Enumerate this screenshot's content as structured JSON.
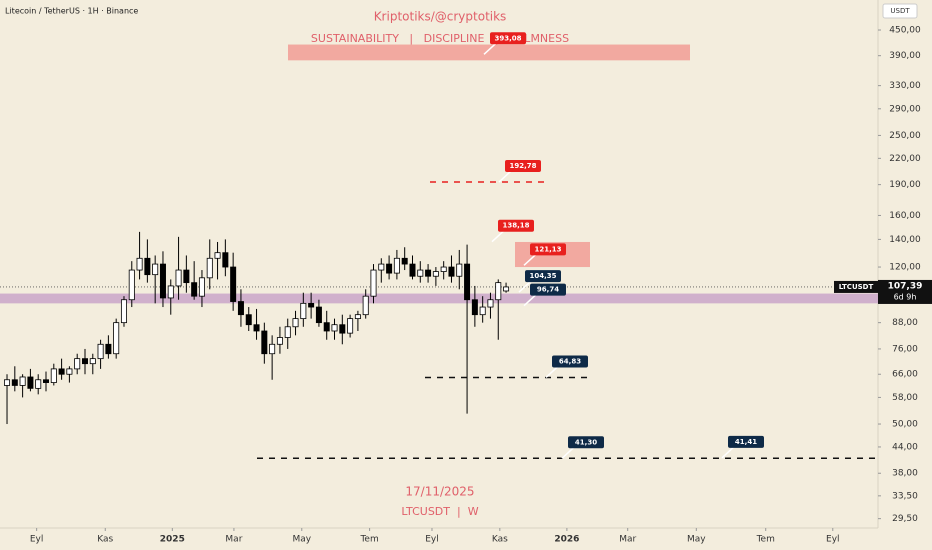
{
  "chart_data": {
    "type": "candlestick",
    "title": "Kriptotiks/@cryptotiks",
    "subtitle": "SUSTAINABILITY   |   DISCIPLINE   |   CALMNESS",
    "symbol_info": "Litecoin / TetherUS · 1H · Binance",
    "date_text": "17/11/2025",
    "footer": "LTCUSDT  |  W",
    "currency": "USDT",
    "log_scale": true,
    "x": [
      0,
      1,
      2,
      3,
      4,
      5,
      6,
      7,
      8,
      9,
      10,
      11,
      12,
      13,
      14,
      15,
      16,
      17,
      18,
      19,
      20,
      21,
      22,
      23,
      24,
      25,
      26,
      27,
      28,
      29,
      30,
      31,
      32,
      33,
      34,
      35,
      36,
      37,
      38,
      39,
      40,
      41,
      42,
      43,
      44,
      45,
      46,
      47,
      48,
      49,
      50,
      51,
      52,
      53,
      54,
      55,
      56,
      57,
      58,
      59,
      60,
      61,
      62,
      63,
      64
    ],
    "open": [
      62,
      64,
      62,
      65,
      61,
      64,
      63,
      68,
      66,
      68,
      72,
      70,
      72,
      78,
      74,
      88,
      100,
      118,
      126,
      115,
      122,
      101,
      108,
      118,
      110,
      102,
      113,
      126,
      130,
      120,
      99,
      92,
      87,
      84,
      74,
      78,
      81,
      86,
      90,
      98,
      96,
      88,
      84,
      87,
      83,
      90,
      92,
      102,
      118,
      122,
      116,
      126,
      122,
      114,
      118,
      114,
      117,
      120,
      114,
      122,
      100,
      92,
      96,
      100,
      105
    ],
    "high": [
      66,
      69,
      66,
      68,
      66,
      67,
      70,
      72,
      69,
      74,
      76,
      74,
      80,
      82,
      90,
      102,
      124,
      146,
      140,
      128,
      131,
      112,
      142,
      128,
      124,
      118,
      140,
      138,
      140,
      130,
      106,
      96,
      95,
      88,
      82,
      86,
      90,
      94,
      104,
      104,
      100,
      94,
      90,
      92,
      92,
      94,
      106,
      122,
      126,
      128,
      132,
      134,
      128,
      124,
      122,
      120,
      124,
      128,
      132,
      136,
      108,
      102,
      104,
      112,
      110
    ],
    "low": [
      50,
      60,
      58,
      60,
      59,
      60,
      62,
      64,
      63,
      66,
      66,
      66,
      68,
      72,
      72,
      86,
      96,
      112,
      110,
      98,
      96,
      92,
      100,
      104,
      100,
      96,
      106,
      112,
      114,
      94,
      86,
      84,
      80,
      70,
      64,
      74,
      76,
      82,
      86,
      90,
      86,
      80,
      80,
      78,
      81,
      84,
      90,
      98,
      110,
      112,
      112,
      118,
      112,
      110,
      110,
      108,
      112,
      110,
      106,
      53,
      86,
      88,
      90,
      80,
      104
    ],
    "close": [
      64,
      62,
      65,
      61,
      64,
      63,
      68,
      66,
      68,
      72,
      70,
      72,
      78,
      74,
      88,
      100,
      118,
      126,
      115,
      122,
      101,
      108,
      118,
      110,
      102,
      113,
      126,
      130,
      120,
      99,
      92,
      87,
      84,
      74,
      78,
      81,
      86,
      90,
      98,
      96,
      88,
      84,
      87,
      83,
      90,
      92,
      102,
      118,
      122,
      116,
      126,
      122,
      114,
      118,
      114,
      117,
      120,
      114,
      122,
      100,
      92,
      96,
      100,
      110,
      107.39
    ],
    "up_color": "#ffffff",
    "down_color": "#000000",
    "xlim": [
      -0.9,
      111.7
    ],
    "xticks": [
      {
        "value": 3.8,
        "label": "Eyl"
      },
      {
        "value": 12.6,
        "label": "Kas"
      },
      {
        "value": 21.2,
        "label": "2025"
      },
      {
        "value": 29.1,
        "label": "Mar"
      },
      {
        "value": 37.8,
        "label": "May"
      },
      {
        "value": 46.5,
        "label": "Tem"
      },
      {
        "value": 54.5,
        "label": "Eyl"
      },
      {
        "value": 63.2,
        "label": "Kas"
      },
      {
        "value": 71.8,
        "label": "2026"
      },
      {
        "value": 79.6,
        "label": "Mar"
      },
      {
        "value": 88.4,
        "label": "May"
      },
      {
        "value": 97.3,
        "label": "Tem"
      },
      {
        "value": 105.9,
        "label": "Eyl"
      }
    ],
    "ylim": [
      28,
      532
    ],
    "yticks": [
      {
        "value": 450,
        "label": "450,00"
      },
      {
        "value": 390,
        "label": "390,00"
      },
      {
        "value": 330,
        "label": "330,00"
      },
      {
        "value": 290,
        "label": "290,00"
      },
      {
        "value": 250,
        "label": "250,00"
      },
      {
        "value": 220,
        "label": "220,00"
      },
      {
        "value": 190,
        "label": "190,00"
      },
      {
        "value": 160,
        "label": "160,00"
      },
      {
        "value": 140,
        "label": "140,00"
      },
      {
        "value": 120,
        "label": "120,00"
      },
      {
        "value": 88,
        "label": "88,00"
      },
      {
        "value": 76,
        "label": "76,00"
      },
      {
        "value": 66,
        "label": "66,00"
      },
      {
        "value": 58,
        "label": "58,00"
      },
      {
        "value": 50,
        "label": "50,00"
      },
      {
        "value": 44,
        "label": "44,00"
      },
      {
        "value": 38,
        "label": "38,00"
      },
      {
        "value": 33.5,
        "label": "33,50"
      },
      {
        "value": 29.5,
        "label": "29,50"
      }
    ],
    "last_price": {
      "value": 107.39,
      "label": "107,39"
    },
    "last_symbol": "LTCUSDT",
    "countdown": "6d 9h",
    "zones": [
      {
        "low": 380,
        "high": 415,
        "color": "#f2a9a0"
      },
      {
        "low": 120,
        "high": 138,
        "color": "#f2a9a0"
      },
      {
        "low": 98,
        "high": 103.5,
        "color": "#c9a4c9"
      }
    ],
    "levels": [
      192.78,
      64.83,
      41.3
    ],
    "annotations": [
      {
        "value": 393.08,
        "label": "393,08",
        "color": "#e8201e"
      },
      {
        "value": 192.78,
        "label": "192,78",
        "color": "#e8201e"
      },
      {
        "value": 138.18,
        "label": "138,18",
        "color": "#e8201e"
      },
      {
        "value": 121.13,
        "label": "121,13",
        "color": "#e8201e"
      },
      {
        "value": 104.35,
        "label": "104,35",
        "color": "#0e2a47"
      },
      {
        "value": 96.74,
        "label": "96,74",
        "color": "#0e2a47"
      },
      {
        "value": 64.83,
        "label": "64,83",
        "color": "#0e2a47"
      },
      {
        "value": 41.3,
        "label": "41,30",
        "color": "#0e2a47"
      },
      {
        "value": 41.41,
        "label": "41,41",
        "color": "#0e2a47"
      }
    ]
  }
}
